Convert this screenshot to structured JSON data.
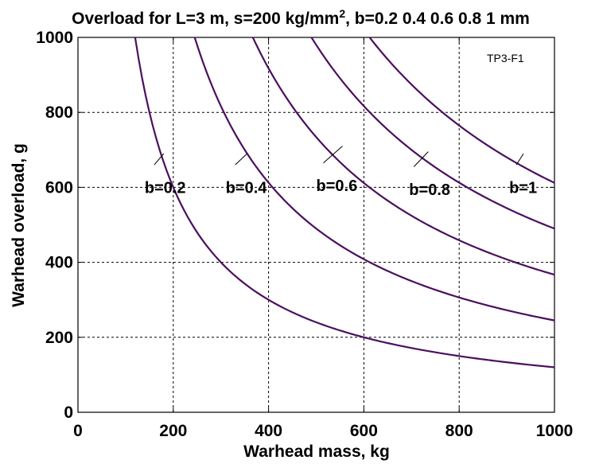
{
  "chart_data": {
    "type": "line",
    "title": {
      "prefix": "Overload for L=3 m, s=200 kg/mm",
      "superscript": "2",
      "suffix": ", b=0.2  0.4  0.6  0.8  1 mm"
    },
    "annotation": "TP3-F1",
    "xlabel": "Warhead mass, kg",
    "ylabel": "Warhead overload, g",
    "xlim": [
      0,
      1000
    ],
    "ylim": [
      0,
      1000
    ],
    "x_ticks": [
      "0",
      "200",
      "400",
      "600",
      "800",
      "1000"
    ],
    "y_ticks": [
      "0",
      "200",
      "400",
      "600",
      "800",
      "1000"
    ],
    "grid": true,
    "line_color": "#4b0f5e",
    "series": [
      {
        "name": "b=0.2",
        "k": 120000,
        "label_at": [
          140,
          600
        ],
        "leader": [
          [
            160,
            660
          ],
          [
            180,
            690
          ]
        ]
      },
      {
        "name": "b=0.4",
        "k": 245000,
        "label_at": [
          310,
          600
        ],
        "leader": [
          [
            330,
            660
          ],
          [
            355,
            690
          ]
        ]
      },
      {
        "name": "b=0.6",
        "k": 367000,
        "label_at": [
          500,
          605
        ],
        "leader": [
          [
            515,
            665
          ],
          [
            555,
            710
          ]
        ]
      },
      {
        "name": "b=0.8",
        "k": 490000,
        "label_at": [
          695,
          595
        ],
        "leader": [
          [
            705,
            655
          ],
          [
            735,
            695
          ]
        ]
      },
      {
        "name": "b=1",
        "k": 612000,
        "label_at": [
          905,
          600
        ],
        "leader": [
          [
            920,
            660
          ],
          [
            935,
            690
          ]
        ]
      }
    ]
  }
}
